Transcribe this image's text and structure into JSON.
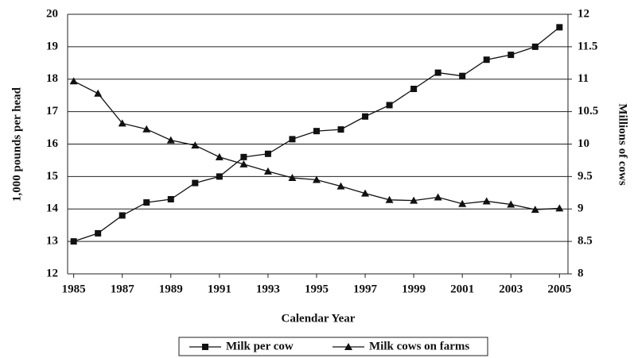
{
  "chart_data": {
    "type": "line",
    "x": [
      1985,
      1986,
      1987,
      1988,
      1989,
      1990,
      1991,
      1992,
      1993,
      1994,
      1995,
      1996,
      1997,
      1998,
      1999,
      2000,
      2001,
      2002,
      2003,
      2004,
      2005
    ],
    "xlim": [
      1984.75,
      2005.35
    ],
    "xticks": [
      1985,
      1987,
      1989,
      1991,
      1993,
      1995,
      1997,
      1999,
      2001,
      2003,
      2005
    ],
    "xlabel": "Calendar Year",
    "ylabel": "1,000 pounds per head",
    "y2label": "Millions of cows",
    "ylim": [
      12,
      20
    ],
    "yticks": [
      12,
      13,
      14,
      15,
      16,
      17,
      18,
      19,
      20
    ],
    "y2lim": [
      8,
      12
    ],
    "y2ticks": [
      8,
      8.5,
      9,
      9.5,
      10,
      10.5,
      11,
      11.5,
      12
    ],
    "grid": true,
    "legend": "bottom",
    "series": [
      {
        "name": "Milk per cow",
        "color": "#111111",
        "marker": "square",
        "values": [
          13.0,
          13.25,
          13.8,
          14.2,
          14.3,
          14.8,
          15.0,
          15.6,
          15.7,
          16.15,
          16.4,
          16.45,
          16.85,
          17.2,
          17.7,
          18.2,
          18.1,
          18.6,
          18.75,
          19.0,
          19.6
        ]
      },
      {
        "name": "Milk cows on farms",
        "color": "#111111",
        "marker": "triangle",
        "axis": "y2",
        "values": [
          10.97,
          10.78,
          10.32,
          10.23,
          10.06,
          9.98,
          9.8,
          9.69,
          9.58,
          9.48,
          9.45,
          9.35,
          9.24,
          9.14,
          9.13,
          9.18,
          9.08,
          9.12,
          9.07,
          8.99,
          9.01
        ]
      }
    ]
  }
}
